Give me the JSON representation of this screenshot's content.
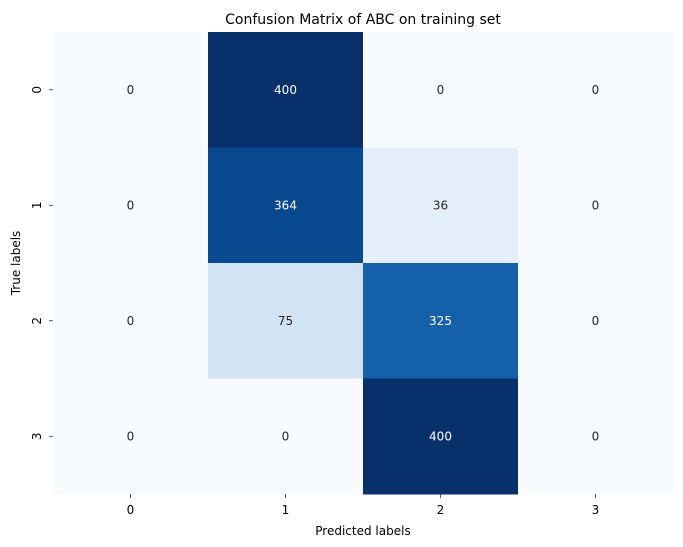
{
  "chart_data": {
    "type": "heatmap",
    "title": "Confusion Matrix of ABC on training set",
    "xlabel": "Predicted labels",
    "ylabel": "True labels",
    "x_categories": [
      "0",
      "1",
      "2",
      "3"
    ],
    "y_categories": [
      "0",
      "1",
      "2",
      "3"
    ],
    "values": [
      [
        0,
        400,
        0,
        0
      ],
      [
        0,
        364,
        36,
        0
      ],
      [
        0,
        75,
        325,
        0
      ],
      [
        0,
        0,
        400,
        0
      ]
    ],
    "colormap": "Blues",
    "color_low": "#f7fbff",
    "color_high": "#08306b",
    "grid": false,
    "colorbar": false
  }
}
